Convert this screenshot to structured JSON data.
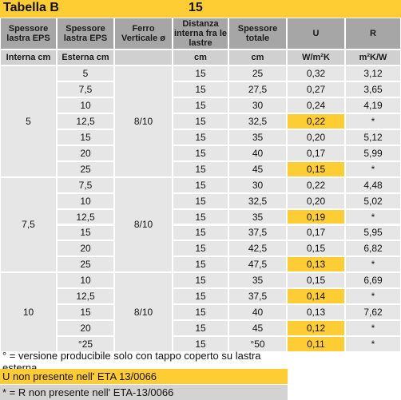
{
  "title": "Tabella B",
  "subtitle": "15",
  "headers": [
    "Spessore lastra EPS",
    "Spessore lastra EPS",
    "Ferro Verticale ø",
    "Distanza interna fra le lastre",
    "Spessore totale",
    "U",
    "R"
  ],
  "units": [
    "Interna cm",
    "Esterna cm",
    "",
    "cm",
    "cm",
    "W/m²K",
    "m²K/W"
  ],
  "groups": [
    {
      "interna": "5",
      "ferro": "8/10"
    },
    {
      "interna": "7,5",
      "ferro": "8/10"
    },
    {
      "interna": "10",
      "ferro": "8/10"
    }
  ],
  "rows": [
    {
      "esterna": "5",
      "distanza": "15",
      "totale": "25",
      "u": "0,32",
      "r": "3,12",
      "u_hi": false
    },
    {
      "esterna": "7,5",
      "distanza": "15",
      "totale": "27,5",
      "u": "0,27",
      "r": "3,65",
      "u_hi": false
    },
    {
      "esterna": "10",
      "distanza": "15",
      "totale": "30",
      "u": "0,24",
      "r": "4,19",
      "u_hi": false
    },
    {
      "esterna": "12,5",
      "distanza": "15",
      "totale": "32,5",
      "u": "0,22",
      "r": "*",
      "u_hi": true
    },
    {
      "esterna": "15",
      "distanza": "15",
      "totale": "35",
      "u": "0,20",
      "r": "5,12",
      "u_hi": false
    },
    {
      "esterna": "20",
      "distanza": "15",
      "totale": "40",
      "u": "0,17",
      "r": "5,99",
      "u_hi": false
    },
    {
      "esterna": "25",
      "distanza": "15",
      "totale": "45",
      "u": "0,15",
      "r": "*",
      "u_hi": true
    },
    {
      "esterna": "7,5",
      "distanza": "15",
      "totale": "30",
      "u": "0,22",
      "r": "4,48",
      "u_hi": false
    },
    {
      "esterna": "10",
      "distanza": "15",
      "totale": "32,5",
      "u": "0,20",
      "r": "5,02",
      "u_hi": false
    },
    {
      "esterna": "12,5",
      "distanza": "15",
      "totale": "35",
      "u": "0,19",
      "r": "*",
      "u_hi": true
    },
    {
      "esterna": "15",
      "distanza": "15",
      "totale": "37,5",
      "u": "0,17",
      "r": "5,95",
      "u_hi": false
    },
    {
      "esterna": "20",
      "distanza": "15",
      "totale": "42,5",
      "u": "0,15",
      "r": "6,82",
      "u_hi": false
    },
    {
      "esterna": "25",
      "distanza": "15",
      "totale": "47,5",
      "u": "0,13",
      "r": "*",
      "u_hi": true
    },
    {
      "esterna": "10",
      "distanza": "15",
      "totale": "35",
      "u": "0,15",
      "r": "6,69",
      "u_hi": false
    },
    {
      "esterna": "12,5",
      "distanza": "15",
      "totale": "37,5",
      "u": "0,14",
      "r": "*",
      "u_hi": true
    },
    {
      "esterna": "15",
      "distanza": "15",
      "totale": "40",
      "u": "0,13",
      "r": "7,62",
      "u_hi": false
    },
    {
      "esterna": "20",
      "distanza": "15",
      "totale": "45",
      "u": "0,12",
      "r": "*",
      "u_hi": true
    },
    {
      "esterna": "°25",
      "distanza": "15",
      "totale": "°50",
      "u": "0,11",
      "r": "*",
      "u_hi": true
    }
  ],
  "notes": [
    "° =  versione producibile solo con tappo coperto su lastra esterna",
    "U  non presente nell' ETA 13/0066",
    "* = R non presente nell' ETA-13/0066"
  ],
  "colors": {
    "accent": "#fecc33",
    "header": "#a6a6a6",
    "cell": "#e6e6e6"
  }
}
